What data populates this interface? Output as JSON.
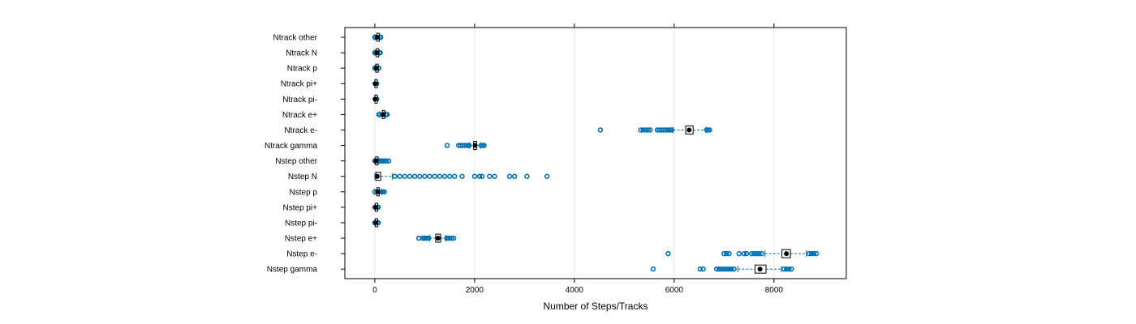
{
  "chart_data": {
    "type": "boxplot",
    "orientation": "horizontal",
    "xlabel": "Number of Steps/Tracks",
    "xlim": [
      -600,
      9450
    ],
    "x_ticks": [
      0,
      2000,
      4000,
      6000,
      8000
    ],
    "x_tick_labels": [
      "0",
      "2000",
      "4000",
      "6000",
      "8000"
    ],
    "grid": "vertical",
    "colors": {
      "points": "#0072b2",
      "median": "#000000",
      "box": "#000000",
      "whisker": "#0072b2",
      "grid": "#e6e6e6"
    },
    "categories": [
      "Ntrack other",
      "Ntrack N",
      "Ntrack p",
      "Ntrack pi+",
      "Ntrack pi-",
      "Ntrack e+",
      "Ntrack e-",
      "Ntrack gamma",
      "Nstep other",
      "Nstep N",
      "Nstep p",
      "Nstep pi+",
      "Nstep pi-",
      "Nstep e+",
      "Nstep e-",
      "Nstep gamma"
    ],
    "boxes": [
      {
        "name": "Ntrack other",
        "whisker_low": 0,
        "q1": 40,
        "median": 50,
        "q3": 60,
        "whisker_high": 100,
        "outliers": [
          0,
          5,
          10,
          100,
          110,
          120
        ]
      },
      {
        "name": "Ntrack N",
        "whisker_low": 0,
        "q1": 30,
        "median": 40,
        "q3": 50,
        "whisker_high": 90,
        "outliers": [
          0,
          5,
          10,
          90,
          100,
          110
        ]
      },
      {
        "name": "Ntrack p",
        "whisker_low": 0,
        "q1": 20,
        "median": 30,
        "q3": 40,
        "whisker_high": 70,
        "outliers": [
          0,
          5,
          70,
          80
        ]
      },
      {
        "name": "Ntrack pi+",
        "whisker_low": 0,
        "q1": 2,
        "median": 5,
        "q3": 8,
        "whisker_high": 20,
        "outliers": [
          20,
          30,
          40
        ]
      },
      {
        "name": "Ntrack pi-",
        "whisker_low": 0,
        "q1": 2,
        "median": 5,
        "q3": 8,
        "whisker_high": 20,
        "outliers": [
          20,
          30,
          40
        ]
      },
      {
        "name": "Ntrack e+",
        "whisker_low": 100,
        "q1": 150,
        "median": 165,
        "q3": 180,
        "whisker_high": 220,
        "outliers": [
          80,
          95,
          100,
          220,
          235,
          250
        ]
      },
      {
        "name": "Ntrack e-",
        "whisker_low": 5980,
        "q1": 6230,
        "median": 6300,
        "q3": 6380,
        "whisker_high": 6640,
        "outliers": [
          4520,
          5330,
          5380,
          5430,
          5480,
          5520,
          5660,
          5700,
          5740,
          5780,
          5820,
          5860,
          5890,
          5920,
          5950,
          6650,
          6680,
          6710
        ]
      },
      {
        "name": "Ntrack gamma",
        "whisker_low": 1900,
        "q1": 1980,
        "median": 2010,
        "q3": 2040,
        "whisker_high": 2120,
        "outliers": [
          1450,
          1680,
          1720,
          1760,
          1800,
          1840,
          1870,
          1890,
          2130,
          2160,
          2190
        ]
      },
      {
        "name": "Nstep other",
        "whisker_low": 0,
        "q1": 15,
        "median": 25,
        "q3": 40,
        "whisker_high": 80,
        "outliers": [
          0,
          80,
          110,
          140,
          170,
          200,
          230,
          280
        ]
      },
      {
        "name": "Nstep N",
        "whisker_low": 0,
        "q1": 20,
        "median": 50,
        "q3": 120,
        "whisker_high": 350,
        "outliers": [
          400,
          500,
          600,
          700,
          800,
          900,
          1000,
          1100,
          1200,
          1300,
          1400,
          1500,
          1600,
          1750,
          2000,
          2100,
          2150,
          2300,
          2400,
          2700,
          2800,
          3050,
          3450
        ]
      },
      {
        "name": "Nstep p",
        "whisker_low": 0,
        "q1": 40,
        "median": 60,
        "q3": 80,
        "whisker_high": 140,
        "outliers": [
          0,
          140,
          160,
          190
        ]
      },
      {
        "name": "Nstep pi+",
        "whisker_low": 0,
        "q1": 10,
        "median": 20,
        "q3": 30,
        "whisker_high": 50,
        "outliers": [
          0,
          50,
          60,
          70
        ]
      },
      {
        "name": "Nstep pi-",
        "whisker_low": 0,
        "q1": 10,
        "median": 20,
        "q3": 30,
        "whisker_high": 50,
        "outliers": [
          0,
          50,
          60,
          70
        ]
      },
      {
        "name": "Nstep e+",
        "whisker_low": 1100,
        "q1": 1220,
        "median": 1270,
        "q3": 1320,
        "whisker_high": 1420,
        "outliers": [
          880,
          960,
          990,
          1020,
          1050,
          1080,
          1440,
          1470,
          1500,
          1540,
          1580
        ]
      },
      {
        "name": "Nstep e-",
        "whisker_low": 7820,
        "q1": 8160,
        "median": 8250,
        "q3": 8330,
        "whisker_high": 8650,
        "outliers": [
          5880,
          7000,
          7050,
          7100,
          7300,
          7400,
          7450,
          7550,
          7600,
          7650,
          7700,
          7750,
          8700,
          8750,
          8800,
          8850
        ]
      },
      {
        "name": "Nstep gamma",
        "whisker_low": 7280,
        "q1": 7620,
        "median": 7720,
        "q3": 7840,
        "whisker_high": 8150,
        "outliers": [
          5580,
          6520,
          6580,
          6850,
          6900,
          6950,
          7000,
          7050,
          7100,
          7150,
          7200,
          8200,
          8250,
          8300,
          8350
        ]
      }
    ]
  }
}
